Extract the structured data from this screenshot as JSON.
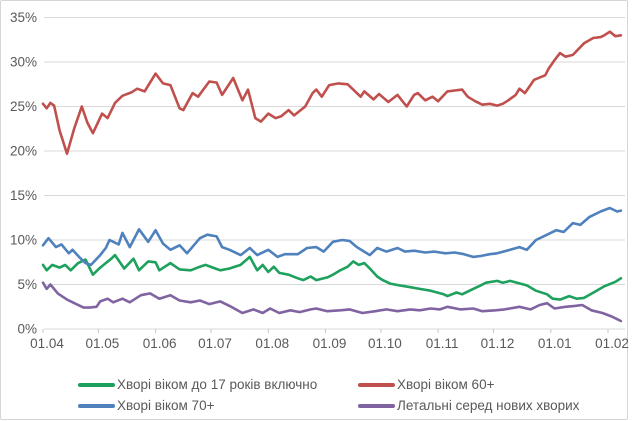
{
  "colors": {
    "grid": "#d9d9d9",
    "tick": "#c6c6c6",
    "text": "#595959",
    "frame_border": "#d6d6d6",
    "background": "#ffffff"
  },
  "chart_data": {
    "type": "line",
    "title": "",
    "grid": "horizontal",
    "legend_position": "bottom-two-columns",
    "x_axis": {
      "tick_labels": [
        "01.04",
        "01.05",
        "01.06",
        "01.07",
        "01.08",
        "01.09",
        "01.10",
        "01.11",
        "01.12",
        "01.01",
        "01.02"
      ],
      "tick_days": [
        0,
        30,
        61,
        91,
        122,
        153,
        183,
        214,
        244,
        275,
        306
      ],
      "domain_days": [
        0,
        313
      ]
    },
    "y_axis": {
      "tick_labels": [
        "0%",
        "5%",
        "10%",
        "15%",
        "20%",
        "25%",
        "30%",
        "35%"
      ],
      "tick_values": [
        0,
        5,
        10,
        15,
        20,
        25,
        30,
        35
      ],
      "range": [
        0,
        35
      ],
      "unit": "percent"
    },
    "series": [
      {
        "name": "Хворі віком до 17 років включно",
        "color": "#1ea15d",
        "points": [
          [
            0,
            7.2
          ],
          [
            2,
            6.6
          ],
          [
            5,
            7.2
          ],
          [
            9,
            6.9
          ],
          [
            12,
            7.2
          ],
          [
            15,
            6.6
          ],
          [
            19,
            7.4
          ],
          [
            23,
            7.8
          ],
          [
            27,
            6.1
          ],
          [
            31,
            6.9
          ],
          [
            34,
            7.4
          ],
          [
            37,
            7.9
          ],
          [
            39,
            8.3
          ],
          [
            44,
            6.8
          ],
          [
            49,
            7.9
          ],
          [
            52,
            6.6
          ],
          [
            57,
            7.6
          ],
          [
            61,
            7.5
          ],
          [
            63,
            6.6
          ],
          [
            69,
            7.4
          ],
          [
            74,
            6.7
          ],
          [
            80,
            6.6
          ],
          [
            85,
            7.0
          ],
          [
            88,
            7.2
          ],
          [
            92,
            6.9
          ],
          [
            96,
            6.6
          ],
          [
            101,
            6.8
          ],
          [
            107,
            7.2
          ],
          [
            112,
            8.1
          ],
          [
            116,
            6.6
          ],
          [
            119,
            7.2
          ],
          [
            122,
            6.4
          ],
          [
            125,
            7.0
          ],
          [
            128,
            6.3
          ],
          [
            133,
            6.1
          ],
          [
            138,
            5.7
          ],
          [
            141,
            5.5
          ],
          [
            145,
            5.9
          ],
          [
            148,
            5.5
          ],
          [
            154,
            5.8
          ],
          [
            157,
            6.1
          ],
          [
            161,
            6.6
          ],
          [
            165,
            7.0
          ],
          [
            168,
            7.6
          ],
          [
            171,
            7.2
          ],
          [
            174,
            7.4
          ],
          [
            177,
            6.8
          ],
          [
            181,
            5.9
          ],
          [
            184,
            5.5
          ],
          [
            188,
            5.1
          ],
          [
            193,
            4.9
          ],
          [
            199,
            4.7
          ],
          [
            204,
            4.5
          ],
          [
            210,
            4.3
          ],
          [
            217,
            3.9
          ],
          [
            219,
            3.7
          ],
          [
            224,
            4.1
          ],
          [
            227,
            3.9
          ],
          [
            233,
            4.5
          ],
          [
            237,
            4.9
          ],
          [
            240,
            5.2
          ],
          [
            246,
            5.4
          ],
          [
            249,
            5.2
          ],
          [
            253,
            5.4
          ],
          [
            262,
            4.9
          ],
          [
            267,
            4.3
          ],
          [
            273,
            3.9
          ],
          [
            276,
            3.4
          ],
          [
            280,
            3.3
          ],
          [
            285,
            3.7
          ],
          [
            289,
            3.4
          ],
          [
            293,
            3.5
          ],
          [
            299,
            4.2
          ],
          [
            304,
            4.8
          ],
          [
            310,
            5.3
          ],
          [
            313,
            5.7
          ]
        ]
      },
      {
        "name": "Хворі віком 60+",
        "color": "#c0504d",
        "points": [
          [
            0,
            25.3
          ],
          [
            2,
            24.8
          ],
          [
            4,
            25.4
          ],
          [
            6,
            25.1
          ],
          [
            9,
            22.3
          ],
          [
            13,
            19.7
          ],
          [
            17,
            22.6
          ],
          [
            21,
            25.0
          ],
          [
            24,
            23.2
          ],
          [
            27,
            22.0
          ],
          [
            32,
            24.2
          ],
          [
            35,
            23.7
          ],
          [
            39,
            25.4
          ],
          [
            43,
            26.2
          ],
          [
            48,
            26.6
          ],
          [
            51,
            27.0
          ],
          [
            55,
            26.7
          ],
          [
            61,
            28.7
          ],
          [
            65,
            27.6
          ],
          [
            69,
            27.4
          ],
          [
            74,
            24.8
          ],
          [
            76,
            24.6
          ],
          [
            81,
            26.5
          ],
          [
            84,
            26.1
          ],
          [
            90,
            27.8
          ],
          [
            94,
            27.7
          ],
          [
            97,
            26.3
          ],
          [
            103,
            28.2
          ],
          [
            108,
            25.7
          ],
          [
            111,
            26.9
          ],
          [
            115,
            23.7
          ],
          [
            118,
            23.3
          ],
          [
            122,
            24.2
          ],
          [
            126,
            23.7
          ],
          [
            129,
            23.9
          ],
          [
            133,
            24.6
          ],
          [
            136,
            24.0
          ],
          [
            142,
            25.0
          ],
          [
            146,
            26.5
          ],
          [
            148,
            26.9
          ],
          [
            151,
            26.1
          ],
          [
            155,
            27.4
          ],
          [
            160,
            27.6
          ],
          [
            165,
            27.5
          ],
          [
            168,
            26.9
          ],
          [
            172,
            26.1
          ],
          [
            174,
            26.7
          ],
          [
            179,
            25.8
          ],
          [
            182,
            26.4
          ],
          [
            187,
            25.5
          ],
          [
            192,
            26.3
          ],
          [
            197,
            25.0
          ],
          [
            201,
            26.3
          ],
          [
            203,
            26.5
          ],
          [
            207,
            25.7
          ],
          [
            211,
            26.1
          ],
          [
            214,
            25.6
          ],
          [
            219,
            26.7
          ],
          [
            223,
            26.8
          ],
          [
            227,
            26.9
          ],
          [
            230,
            26.1
          ],
          [
            234,
            25.6
          ],
          [
            238,
            25.2
          ],
          [
            242,
            25.3
          ],
          [
            246,
            25.1
          ],
          [
            249,
            25.3
          ],
          [
            252,
            25.7
          ],
          [
            256,
            26.3
          ],
          [
            258,
            27.0
          ],
          [
            261,
            26.5
          ],
          [
            266,
            28.0
          ],
          [
            272,
            28.5
          ],
          [
            274,
            29.3
          ],
          [
            277,
            30.2
          ],
          [
            280,
            31.0
          ],
          [
            283,
            30.6
          ],
          [
            287,
            30.8
          ],
          [
            293,
            32.1
          ],
          [
            298,
            32.7
          ],
          [
            302,
            32.8
          ],
          [
            304,
            33.0
          ],
          [
            307,
            33.4
          ],
          [
            310,
            32.9
          ],
          [
            313,
            33.0
          ]
        ]
      },
      {
        "name": "Хворі віком 70+",
        "color": "#4f81bd",
        "points": [
          [
            0,
            9.4
          ],
          [
            3,
            10.2
          ],
          [
            7,
            9.2
          ],
          [
            10,
            9.5
          ],
          [
            14,
            8.5
          ],
          [
            16,
            8.9
          ],
          [
            20,
            8.0
          ],
          [
            23,
            7.4
          ],
          [
            26,
            7.2
          ],
          [
            31,
            8.3
          ],
          [
            34,
            9.1
          ],
          [
            36,
            10.0
          ],
          [
            41,
            9.5
          ],
          [
            43,
            10.8
          ],
          [
            47,
            9.2
          ],
          [
            52,
            11.2
          ],
          [
            57,
            9.8
          ],
          [
            61,
            11.1
          ],
          [
            65,
            9.6
          ],
          [
            69,
            8.9
          ],
          [
            74,
            9.4
          ],
          [
            78,
            8.5
          ],
          [
            85,
            10.2
          ],
          [
            89,
            10.6
          ],
          [
            94,
            10.4
          ],
          [
            97,
            9.2
          ],
          [
            101,
            8.9
          ],
          [
            107,
            8.3
          ],
          [
            112,
            9.1
          ],
          [
            116,
            8.3
          ],
          [
            122,
            8.9
          ],
          [
            127,
            8.1
          ],
          [
            131,
            8.4
          ],
          [
            138,
            8.4
          ],
          [
            143,
            9.1
          ],
          [
            148,
            9.2
          ],
          [
            152,
            8.7
          ],
          [
            157,
            9.8
          ],
          [
            162,
            10.0
          ],
          [
            166,
            9.9
          ],
          [
            170,
            9.2
          ],
          [
            177,
            8.3
          ],
          [
            181,
            9.1
          ],
          [
            186,
            8.7
          ],
          [
            192,
            9.1
          ],
          [
            196,
            8.7
          ],
          [
            201,
            8.8
          ],
          [
            207,
            8.6
          ],
          [
            212,
            8.7
          ],
          [
            218,
            8.5
          ],
          [
            223,
            8.6
          ],
          [
            228,
            8.4
          ],
          [
            233,
            8.1
          ],
          [
            237,
            8.2
          ],
          [
            242,
            8.4
          ],
          [
            246,
            8.5
          ],
          [
            253,
            8.9
          ],
          [
            258,
            9.2
          ],
          [
            262,
            8.9
          ],
          [
            267,
            10.0
          ],
          [
            273,
            10.6
          ],
          [
            278,
            11.1
          ],
          [
            282,
            10.9
          ],
          [
            287,
            11.9
          ],
          [
            291,
            11.7
          ],
          [
            296,
            12.6
          ],
          [
            302,
            13.2
          ],
          [
            307,
            13.6
          ],
          [
            311,
            13.2
          ],
          [
            313,
            13.3
          ]
        ]
      },
      {
        "name": "Летальні серед нових хворих",
        "color": "#8064a2",
        "points": [
          [
            0,
            5.2
          ],
          [
            2,
            4.5
          ],
          [
            4,
            5.0
          ],
          [
            8,
            4.0
          ],
          [
            13,
            3.3
          ],
          [
            17,
            2.9
          ],
          [
            22,
            2.4
          ],
          [
            25,
            2.4
          ],
          [
            29,
            2.5
          ],
          [
            31,
            3.1
          ],
          [
            35,
            3.4
          ],
          [
            38,
            3.0
          ],
          [
            43,
            3.4
          ],
          [
            47,
            3.0
          ],
          [
            53,
            3.8
          ],
          [
            58,
            4.0
          ],
          [
            63,
            3.4
          ],
          [
            69,
            3.8
          ],
          [
            74,
            3.2
          ],
          [
            80,
            3.0
          ],
          [
            85,
            3.2
          ],
          [
            90,
            2.8
          ],
          [
            96,
            3.1
          ],
          [
            101,
            2.6
          ],
          [
            108,
            1.8
          ],
          [
            114,
            2.2
          ],
          [
            119,
            1.8
          ],
          [
            123,
            2.3
          ],
          [
            128,
            1.8
          ],
          [
            134,
            2.1
          ],
          [
            139,
            1.9
          ],
          [
            145,
            2.2
          ],
          [
            148,
            2.3
          ],
          [
            154,
            2.0
          ],
          [
            161,
            2.1
          ],
          [
            166,
            2.2
          ],
          [
            173,
            1.8
          ],
          [
            180,
            2.0
          ],
          [
            186,
            2.2
          ],
          [
            192,
            2.0
          ],
          [
            199,
            2.2
          ],
          [
            204,
            2.1
          ],
          [
            210,
            2.3
          ],
          [
            215,
            2.2
          ],
          [
            219,
            2.5
          ],
          [
            226,
            2.2
          ],
          [
            233,
            2.3
          ],
          [
            238,
            2.0
          ],
          [
            245,
            2.1
          ],
          [
            250,
            2.2
          ],
          [
            258,
            2.5
          ],
          [
            264,
            2.2
          ],
          [
            269,
            2.7
          ],
          [
            273,
            2.9
          ],
          [
            277,
            2.3
          ],
          [
            283,
            2.5
          ],
          [
            288,
            2.6
          ],
          [
            292,
            2.7
          ],
          [
            297,
            2.1
          ],
          [
            303,
            1.8
          ],
          [
            308,
            1.4
          ],
          [
            311,
            1.1
          ],
          [
            313,
            0.9
          ]
        ]
      }
    ]
  }
}
